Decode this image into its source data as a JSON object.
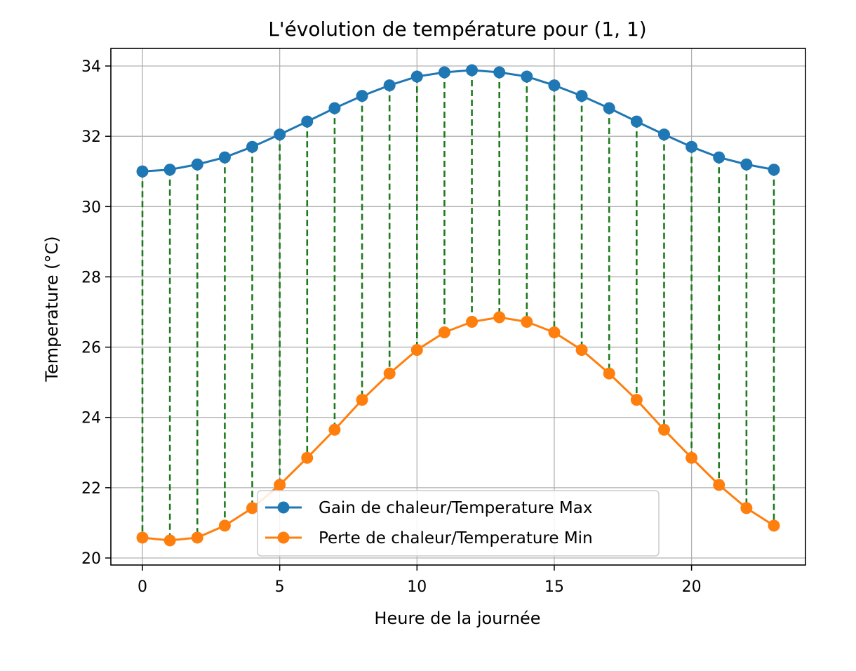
{
  "chart_data": {
    "type": "line",
    "title": "L'évolution de température pour (1, 1)",
    "xlabel": "Heure de la journée",
    "ylabel": "Temperature (°C)",
    "xlim": [
      -1.15,
      24.15
    ],
    "ylim": [
      19.8,
      34.5
    ],
    "xticks": [
      0,
      5,
      10,
      15,
      20
    ],
    "yticks": [
      20,
      22,
      24,
      26,
      28,
      30,
      32,
      34
    ],
    "grid": true,
    "legend_position": "lower center",
    "x": [
      0,
      1,
      2,
      3,
      4,
      5,
      6,
      7,
      8,
      9,
      10,
      11,
      12,
      13,
      14,
      15,
      16,
      17,
      18,
      19,
      20,
      21,
      22,
      23
    ],
    "series": [
      {
        "name": "Gain de chaleur/Temperature Max",
        "color": "#1f77b4",
        "marker": "circle",
        "values": [
          31.0,
          31.05,
          31.2,
          31.4,
          31.7,
          32.05,
          32.42,
          32.8,
          33.15,
          33.45,
          33.7,
          33.82,
          33.88,
          33.82,
          33.7,
          33.45,
          33.15,
          32.8,
          32.42,
          32.05,
          31.7,
          31.4,
          31.2,
          31.05
        ]
      },
      {
        "name": "Perte de chaleur/Temperature Min",
        "color": "#ff7f0e",
        "marker": "circle",
        "values": [
          20.58,
          20.5,
          20.58,
          20.92,
          21.42,
          22.08,
          22.85,
          23.65,
          24.5,
          25.25,
          25.92,
          26.42,
          26.72,
          26.85,
          26.72,
          26.42,
          25.92,
          25.25,
          24.5,
          23.65,
          22.85,
          22.08,
          21.42,
          20.92
        ]
      }
    ],
    "connectors": {
      "color": "#1f7a1f",
      "style": "dashed",
      "between": [
        "Gain de chaleur/Temperature Max",
        "Perte de chaleur/Temperature Min"
      ]
    }
  }
}
